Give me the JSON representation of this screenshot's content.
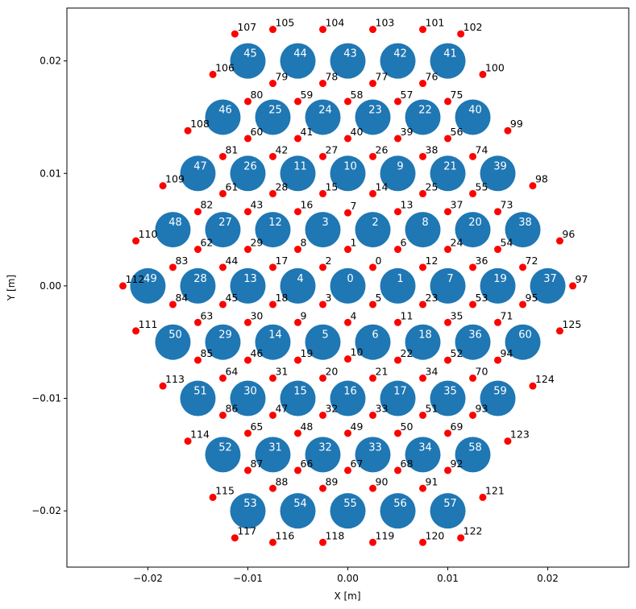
{
  "chart_data": {
    "type": "scatter",
    "xlabel": "X [m]",
    "ylabel": "Y [m]",
    "xlim": [
      -0.0281,
      0.0281
    ],
    "ylim": [
      -0.025,
      0.0247
    ],
    "x_ticks": [
      -0.02,
      -0.01,
      0.0,
      0.01,
      0.02
    ],
    "x_tick_labels": [
      "−0.02",
      "−0.01",
      "0.00",
      "0.01",
      "0.02"
    ],
    "y_ticks": [
      -0.02,
      -0.01,
      0.0,
      0.01,
      0.02
    ],
    "y_tick_labels": [
      "−0.02",
      "−0.01",
      "0.00",
      "0.01",
      "0.02"
    ],
    "grid": false,
    "colors": {
      "large": "#1f77b4",
      "small": "#ff0000",
      "large_label": "#ffffff",
      "small_label": "#000000"
    },
    "large_points": [
      {
        "label": "0",
        "x": 0.0,
        "y": 0.0
      },
      {
        "label": "1",
        "x": 0.005,
        "y": 0.0
      },
      {
        "label": "2",
        "x": 0.0025,
        "y": 0.005
      },
      {
        "label": "3",
        "x": -0.0025,
        "y": 0.005
      },
      {
        "label": "4",
        "x": -0.005,
        "y": 0.0
      },
      {
        "label": "5",
        "x": -0.0025,
        "y": -0.005
      },
      {
        "label": "6",
        "x": 0.0025,
        "y": -0.005
      },
      {
        "label": "7",
        "x": 0.01,
        "y": 0.0
      },
      {
        "label": "8",
        "x": 0.0075,
        "y": 0.005
      },
      {
        "label": "9",
        "x": 0.005,
        "y": 0.01
      },
      {
        "label": "10",
        "x": 0.0,
        "y": 0.01
      },
      {
        "label": "11",
        "x": -0.005,
        "y": 0.01
      },
      {
        "label": "12",
        "x": -0.0075,
        "y": 0.005
      },
      {
        "label": "13",
        "x": -0.01,
        "y": 0.0
      },
      {
        "label": "14",
        "x": -0.0075,
        "y": -0.005
      },
      {
        "label": "15",
        "x": -0.005,
        "y": -0.01
      },
      {
        "label": "16",
        "x": 0.0,
        "y": -0.01
      },
      {
        "label": "17",
        "x": 0.005,
        "y": -0.01
      },
      {
        "label": "18",
        "x": 0.0075,
        "y": -0.005
      },
      {
        "label": "19",
        "x": 0.015,
        "y": 0.0
      },
      {
        "label": "20",
        "x": 0.0125,
        "y": 0.005
      },
      {
        "label": "21",
        "x": 0.01,
        "y": 0.01
      },
      {
        "label": "22",
        "x": 0.0075,
        "y": 0.015
      },
      {
        "label": "23",
        "x": 0.0025,
        "y": 0.015
      },
      {
        "label": "24",
        "x": -0.0025,
        "y": 0.015
      },
      {
        "label": "25",
        "x": -0.0075,
        "y": 0.015
      },
      {
        "label": "26",
        "x": -0.01,
        "y": 0.01
      },
      {
        "label": "27",
        "x": -0.0125,
        "y": 0.005
      },
      {
        "label": "28",
        "x": -0.015,
        "y": 0.0
      },
      {
        "label": "29",
        "x": -0.0125,
        "y": -0.005
      },
      {
        "label": "30",
        "x": -0.01,
        "y": -0.01
      },
      {
        "label": "31",
        "x": -0.0075,
        "y": -0.015
      },
      {
        "label": "32",
        "x": -0.0025,
        "y": -0.015
      },
      {
        "label": "33",
        "x": 0.0025,
        "y": -0.015
      },
      {
        "label": "34",
        "x": 0.0075,
        "y": -0.015
      },
      {
        "label": "35",
        "x": 0.01,
        "y": -0.01
      },
      {
        "label": "36",
        "x": 0.0125,
        "y": -0.005
      },
      {
        "label": "37",
        "x": 0.02,
        "y": 0.0
      },
      {
        "label": "38",
        "x": 0.0175,
        "y": 0.005
      },
      {
        "label": "39",
        "x": 0.015,
        "y": 0.01
      },
      {
        "label": "40",
        "x": 0.0125,
        "y": 0.015
      },
      {
        "label": "41",
        "x": 0.01,
        "y": 0.02
      },
      {
        "label": "42",
        "x": 0.005,
        "y": 0.02
      },
      {
        "label": "43",
        "x": 0.0,
        "y": 0.02
      },
      {
        "label": "44",
        "x": -0.005,
        "y": 0.02
      },
      {
        "label": "45",
        "x": -0.01,
        "y": 0.02
      },
      {
        "label": "46",
        "x": -0.0125,
        "y": 0.015
      },
      {
        "label": "47",
        "x": -0.015,
        "y": 0.01
      },
      {
        "label": "48",
        "x": -0.0175,
        "y": 0.005
      },
      {
        "label": "49",
        "x": -0.02,
        "y": 0.0
      },
      {
        "label": "50",
        "x": -0.0175,
        "y": -0.005
      },
      {
        "label": "51",
        "x": -0.015,
        "y": -0.01
      },
      {
        "label": "52",
        "x": -0.0125,
        "y": -0.015
      },
      {
        "label": "53",
        "x": -0.01,
        "y": -0.02
      },
      {
        "label": "54",
        "x": -0.005,
        "y": -0.02
      },
      {
        "label": "55",
        "x": 0.0,
        "y": -0.02
      },
      {
        "label": "56",
        "x": 0.005,
        "y": -0.02
      },
      {
        "label": "57",
        "x": 0.01,
        "y": -0.02
      },
      {
        "label": "58",
        "x": 0.0125,
        "y": -0.015
      },
      {
        "label": "59",
        "x": 0.015,
        "y": -0.01
      },
      {
        "label": "60",
        "x": 0.0175,
        "y": -0.005
      }
    ],
    "small_points": [
      {
        "label": "0",
        "x": 0.0025,
        "y": 0.00165
      },
      {
        "label": "1",
        "x": 0.0,
        "y": 0.00325
      },
      {
        "label": "2",
        "x": -0.0025,
        "y": 0.00165
      },
      {
        "label": "3",
        "x": -0.0025,
        "y": -0.00165
      },
      {
        "label": "4",
        "x": 0.0,
        "y": -0.00325
      },
      {
        "label": "5",
        "x": 0.0025,
        "y": -0.00165
      },
      {
        "label": "6",
        "x": 0.005,
        "y": 0.00325
      },
      {
        "label": "7",
        "x": 0.0,
        "y": 0.0065
      },
      {
        "label": "8",
        "x": -0.005,
        "y": 0.00325
      },
      {
        "label": "9",
        "x": -0.005,
        "y": -0.00325
      },
      {
        "label": "10",
        "x": 0.0,
        "y": -0.0065
      },
      {
        "label": "11",
        "x": 0.005,
        "y": -0.00325
      },
      {
        "label": "12",
        "x": 0.0075,
        "y": 0.00165
      },
      {
        "label": "13",
        "x": 0.005,
        "y": 0.0066
      },
      {
        "label": "14",
        "x": 0.0025,
        "y": 0.0082
      },
      {
        "label": "15",
        "x": -0.0025,
        "y": 0.0082
      },
      {
        "label": "16",
        "x": -0.005,
        "y": 0.0066
      },
      {
        "label": "17",
        "x": -0.0075,
        "y": 0.00165
      },
      {
        "label": "18",
        "x": -0.0075,
        "y": -0.00165
      },
      {
        "label": "19",
        "x": -0.005,
        "y": -0.0066
      },
      {
        "label": "20",
        "x": -0.0025,
        "y": -0.0082
      },
      {
        "label": "21",
        "x": 0.0025,
        "y": -0.0082
      },
      {
        "label": "22",
        "x": 0.005,
        "y": -0.0066
      },
      {
        "label": "23",
        "x": 0.0075,
        "y": -0.00165
      },
      {
        "label": "24",
        "x": 0.01,
        "y": 0.00325
      },
      {
        "label": "25",
        "x": 0.0075,
        "y": 0.0082
      },
      {
        "label": "26",
        "x": 0.0025,
        "y": 0.0115
      },
      {
        "label": "27",
        "x": -0.0025,
        "y": 0.0115
      },
      {
        "label": "28",
        "x": -0.0075,
        "y": 0.0082
      },
      {
        "label": "29",
        "x": -0.01,
        "y": 0.00325
      },
      {
        "label": "30",
        "x": -0.01,
        "y": -0.00325
      },
      {
        "label": "31",
        "x": -0.0075,
        "y": -0.0082
      },
      {
        "label": "32",
        "x": -0.0025,
        "y": -0.0115
      },
      {
        "label": "33",
        "x": 0.0025,
        "y": -0.0115
      },
      {
        "label": "34",
        "x": 0.0075,
        "y": -0.0082
      },
      {
        "label": "35",
        "x": 0.01,
        "y": -0.00325
      },
      {
        "label": "36",
        "x": 0.0125,
        "y": 0.00165
      },
      {
        "label": "37",
        "x": 0.01,
        "y": 0.0066
      },
      {
        "label": "38",
        "x": 0.0075,
        "y": 0.0115
      },
      {
        "label": "39",
        "x": 0.005,
        "y": 0.0131
      },
      {
        "label": "40",
        "x": 0.0,
        "y": 0.0131
      },
      {
        "label": "41",
        "x": -0.005,
        "y": 0.0131
      },
      {
        "label": "42",
        "x": -0.0075,
        "y": 0.0115
      },
      {
        "label": "43",
        "x": -0.01,
        "y": 0.0066
      },
      {
        "label": "44",
        "x": -0.0125,
        "y": 0.00165
      },
      {
        "label": "45",
        "x": -0.0125,
        "y": -0.00165
      },
      {
        "label": "46",
        "x": -0.01,
        "y": -0.0066
      },
      {
        "label": "47",
        "x": -0.0075,
        "y": -0.0115
      },
      {
        "label": "48",
        "x": -0.005,
        "y": -0.0131
      },
      {
        "label": "49",
        "x": 0.0,
        "y": -0.0131
      },
      {
        "label": "50",
        "x": 0.005,
        "y": -0.0131
      },
      {
        "label": "51",
        "x": 0.0075,
        "y": -0.0115
      },
      {
        "label": "52",
        "x": 0.01,
        "y": -0.0066
      },
      {
        "label": "53",
        "x": 0.0125,
        "y": -0.00165
      },
      {
        "label": "54",
        "x": 0.015,
        "y": 0.00325
      },
      {
        "label": "55",
        "x": 0.0125,
        "y": 0.0082
      },
      {
        "label": "56",
        "x": 0.01,
        "y": 0.0131
      },
      {
        "label": "57",
        "x": 0.005,
        "y": 0.0164
      },
      {
        "label": "58",
        "x": 0.0,
        "y": 0.0164
      },
      {
        "label": "59",
        "x": -0.005,
        "y": 0.0164
      },
      {
        "label": "60",
        "x": -0.01,
        "y": 0.0131
      },
      {
        "label": "61",
        "x": -0.0125,
        "y": 0.0082
      },
      {
        "label": "62",
        "x": -0.015,
        "y": 0.00325
      },
      {
        "label": "63",
        "x": -0.015,
        "y": -0.00325
      },
      {
        "label": "64",
        "x": -0.0125,
        "y": -0.0082
      },
      {
        "label": "65",
        "x": -0.01,
        "y": -0.0131
      },
      {
        "label": "66",
        "x": -0.005,
        "y": -0.0164
      },
      {
        "label": "67",
        "x": 0.0,
        "y": -0.0164
      },
      {
        "label": "68",
        "x": 0.005,
        "y": -0.0164
      },
      {
        "label": "69",
        "x": 0.01,
        "y": -0.0131
      },
      {
        "label": "70",
        "x": 0.0125,
        "y": -0.0082
      },
      {
        "label": "71",
        "x": 0.015,
        "y": -0.00325
      },
      {
        "label": "72",
        "x": 0.0175,
        "y": 0.00165
      },
      {
        "label": "73",
        "x": 0.015,
        "y": 0.0066
      },
      {
        "label": "74",
        "x": 0.0125,
        "y": 0.0115
      },
      {
        "label": "75",
        "x": 0.01,
        "y": 0.0164
      },
      {
        "label": "76",
        "x": 0.0075,
        "y": 0.018
      },
      {
        "label": "77",
        "x": 0.0025,
        "y": 0.018
      },
      {
        "label": "78",
        "x": -0.0025,
        "y": 0.018
      },
      {
        "label": "79",
        "x": -0.0075,
        "y": 0.018
      },
      {
        "label": "80",
        "x": -0.01,
        "y": 0.0164
      },
      {
        "label": "81",
        "x": -0.0125,
        "y": 0.0115
      },
      {
        "label": "82",
        "x": -0.015,
        "y": 0.0066
      },
      {
        "label": "83",
        "x": -0.0175,
        "y": 0.00165
      },
      {
        "label": "84",
        "x": -0.0175,
        "y": -0.00165
      },
      {
        "label": "85",
        "x": -0.015,
        "y": -0.0066
      },
      {
        "label": "86",
        "x": -0.0125,
        "y": -0.0115
      },
      {
        "label": "87",
        "x": -0.01,
        "y": -0.0164
      },
      {
        "label": "88",
        "x": -0.0075,
        "y": -0.018
      },
      {
        "label": "89",
        "x": -0.0025,
        "y": -0.018
      },
      {
        "label": "90",
        "x": 0.0025,
        "y": -0.018
      },
      {
        "label": "91",
        "x": 0.0075,
        "y": -0.018
      },
      {
        "label": "92",
        "x": 0.01,
        "y": -0.0164
      },
      {
        "label": "93",
        "x": 0.0125,
        "y": -0.0115
      },
      {
        "label": "94",
        "x": 0.015,
        "y": -0.0066
      },
      {
        "label": "95",
        "x": 0.0175,
        "y": -0.00165
      },
      {
        "label": "96",
        "x": 0.0212,
        "y": 0.004
      },
      {
        "label": "97",
        "x": 0.0225,
        "y": 0.0
      },
      {
        "label": "98",
        "x": 0.0185,
        "y": 0.0089
      },
      {
        "label": "99",
        "x": 0.016,
        "y": 0.0138
      },
      {
        "label": "100",
        "x": 0.0135,
        "y": 0.0188
      },
      {
        "label": "101",
        "x": 0.0075,
        "y": 0.0228
      },
      {
        "label": "102",
        "x": 0.0113,
        "y": 0.0224
      },
      {
        "label": "103",
        "x": 0.0025,
        "y": 0.0228
      },
      {
        "label": "104",
        "x": -0.0025,
        "y": 0.0228
      },
      {
        "label": "105",
        "x": -0.0075,
        "y": 0.0228
      },
      {
        "label": "106",
        "x": -0.0135,
        "y": 0.0188
      },
      {
        "label": "107",
        "x": -0.0113,
        "y": 0.0224
      },
      {
        "label": "108",
        "x": -0.016,
        "y": 0.0138
      },
      {
        "label": "109",
        "x": -0.0185,
        "y": 0.0089
      },
      {
        "label": "110",
        "x": -0.0212,
        "y": 0.004
      },
      {
        "label": "111",
        "x": -0.0212,
        "y": -0.004
      },
      {
        "label": "112",
        "x": -0.0225,
        "y": 0.0
      },
      {
        "label": "113",
        "x": -0.0185,
        "y": -0.0089
      },
      {
        "label": "114",
        "x": -0.016,
        "y": -0.0138
      },
      {
        "label": "115",
        "x": -0.0135,
        "y": -0.0188
      },
      {
        "label": "116",
        "x": -0.0075,
        "y": -0.0228
      },
      {
        "label": "117",
        "x": -0.0113,
        "y": -0.0224
      },
      {
        "label": "118",
        "x": -0.0025,
        "y": -0.0228
      },
      {
        "label": "119",
        "x": 0.0025,
        "y": -0.0228
      },
      {
        "label": "120",
        "x": 0.0075,
        "y": -0.0228
      },
      {
        "label": "121",
        "x": 0.0135,
        "y": -0.0188
      },
      {
        "label": "122",
        "x": 0.0113,
        "y": -0.0224
      },
      {
        "label": "123",
        "x": 0.016,
        "y": -0.0138
      },
      {
        "label": "124",
        "x": 0.0185,
        "y": -0.0089
      },
      {
        "label": "125",
        "x": 0.0212,
        "y": -0.004
      }
    ]
  }
}
